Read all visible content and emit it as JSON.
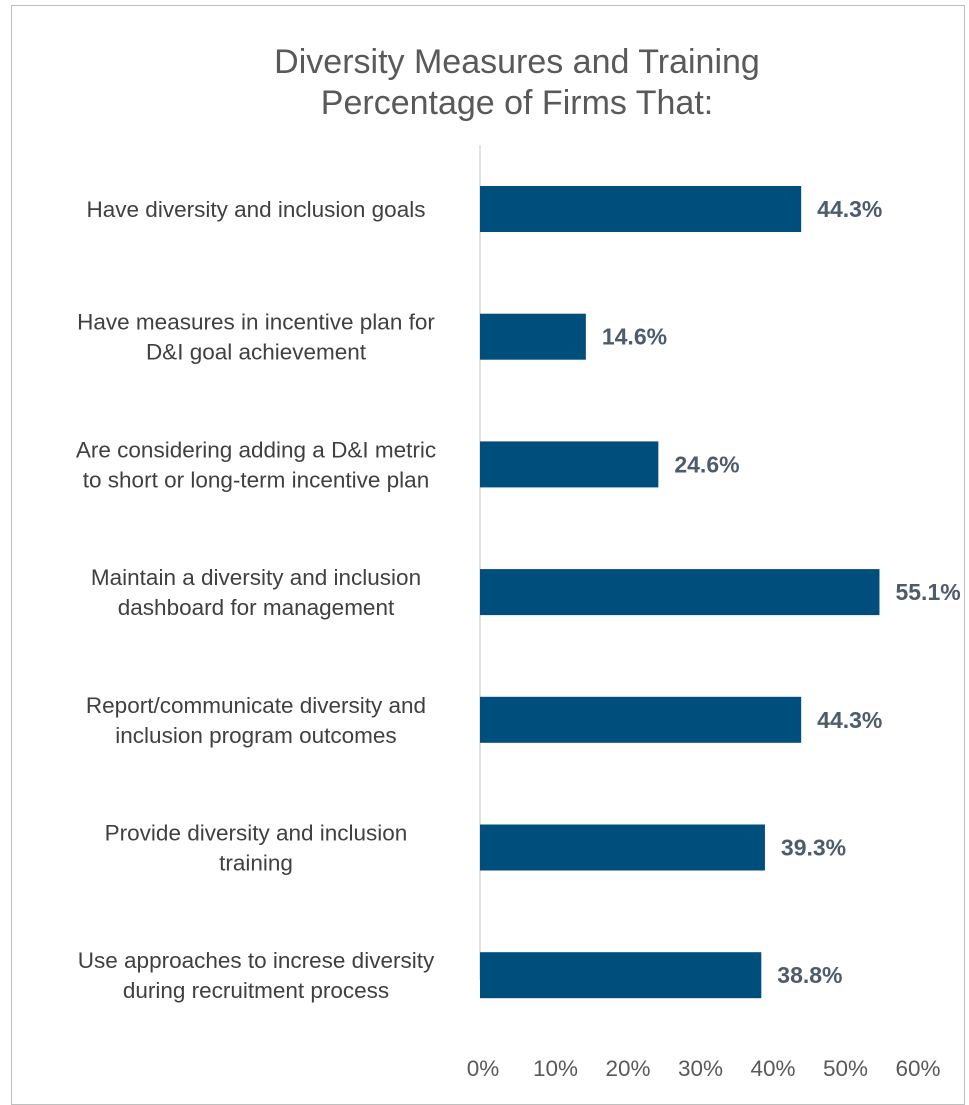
{
  "chart_data": {
    "type": "bar",
    "orientation": "horizontal",
    "title": [
      "Diversity Measures and Training",
      "Percentage of Firms That:"
    ],
    "categories": [
      [
        "Have diversity and inclusion goals"
      ],
      [
        "Have measures in incentive plan for",
        "D&I goal achievement"
      ],
      [
        "Are considering adding a D&I metric",
        "to short or long-term incentive plan"
      ],
      [
        "Maintain a diversity and inclusion",
        "dashboard for management"
      ],
      [
        "Report/communicate diversity and",
        "inclusion program outcomes"
      ],
      [
        "Provide diversity and inclusion",
        "training"
      ],
      [
        "Use approaches to increse diversity",
        "during recruitment process"
      ]
    ],
    "values": [
      44.3,
      14.6,
      24.6,
      55.1,
      44.3,
      39.3,
      38.8
    ],
    "data_labels": [
      "44.3%",
      "14.6%",
      "24.6%",
      "55.1%",
      "44.3%",
      "39.3%",
      "38.8%"
    ],
    "xlim": [
      0,
      60
    ],
    "x_ticks": [
      "0%",
      "10%",
      "20%",
      "30%",
      "40%",
      "50%",
      "60%"
    ],
    "grid": false,
    "legend": "none",
    "bar_color": "#004e7c",
    "label_color": "#4d5b6b"
  }
}
